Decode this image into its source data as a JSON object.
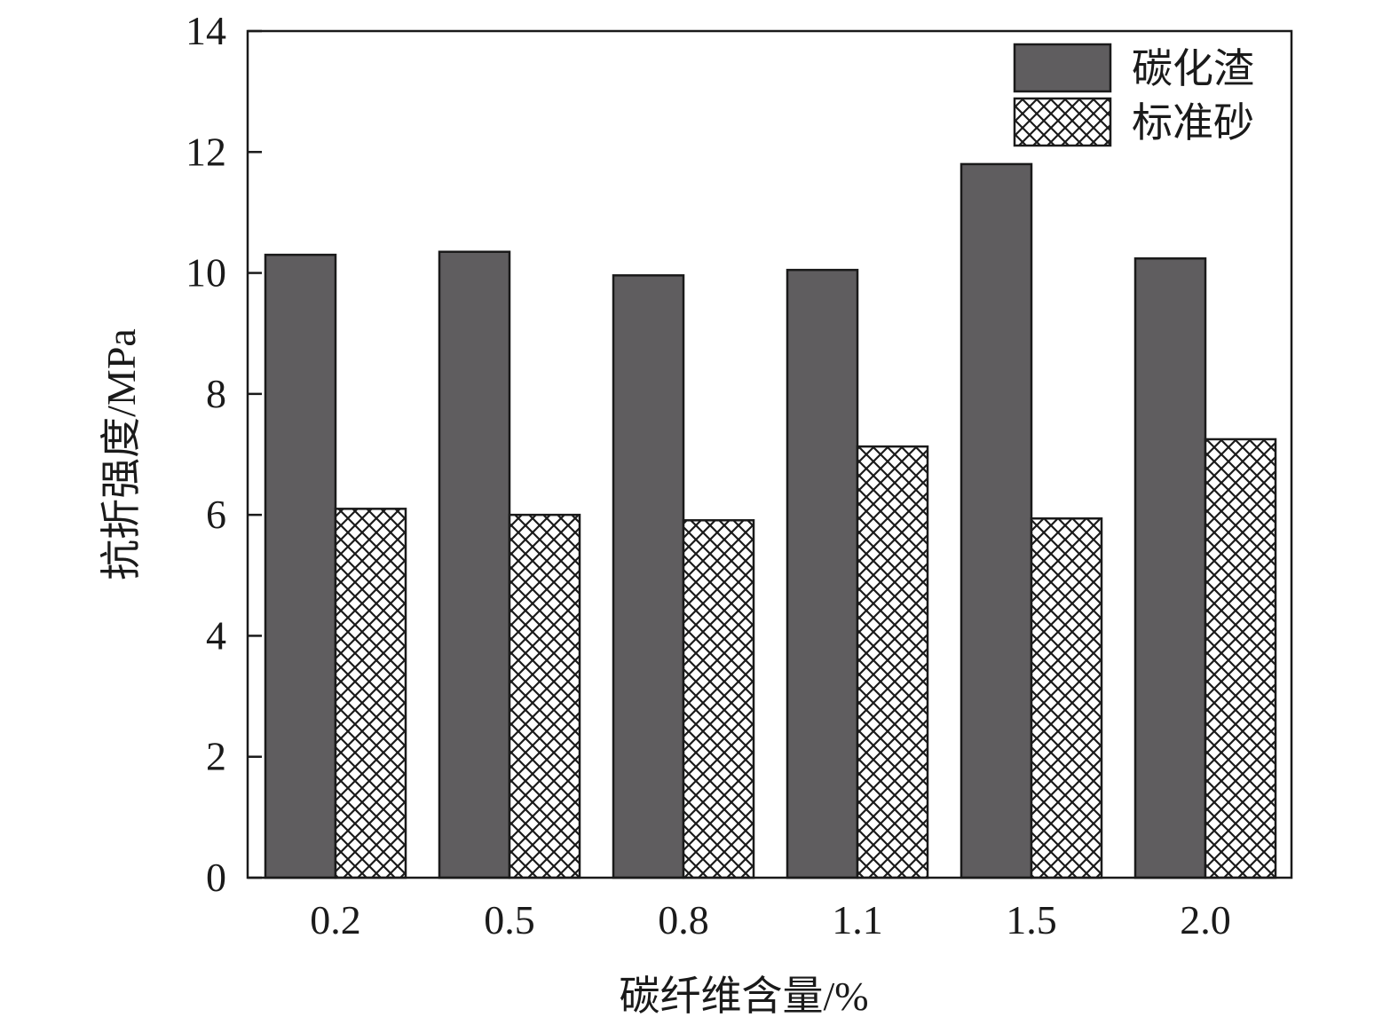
{
  "chart_data": {
    "type": "bar",
    "title": "",
    "xlabel": "碳纤维含量/%",
    "ylabel": "抗折强度/MPa",
    "categories": [
      "0.2",
      "0.5",
      "0.8",
      "1.1",
      "1.5",
      "2.0"
    ],
    "ylim": [
      0,
      14
    ],
    "yticks": [
      "0",
      "2",
      "4",
      "6",
      "8",
      "10",
      "12",
      "14"
    ],
    "grid": false,
    "legend_position": "top-right",
    "series": [
      {
        "name": "碳化渣",
        "values": [
          10.3,
          10.35,
          9.96,
          10.05,
          11.8,
          10.24
        ],
        "color": "#5f5d5f",
        "pattern": "solid"
      },
      {
        "name": "标准砂",
        "values": [
          6.1,
          6.0,
          5.91,
          7.13,
          5.94,
          7.25
        ],
        "color": "#1a1a1a",
        "pattern": "crosshatch"
      }
    ]
  }
}
